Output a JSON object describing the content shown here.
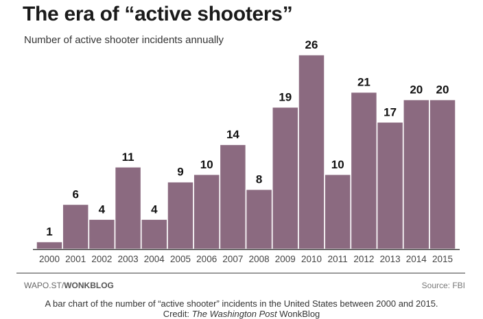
{
  "header": {
    "title": "The era of “active shooters”",
    "subtitle": "Number of active shooter incidents annually"
  },
  "chart_data": {
    "type": "bar",
    "title": "The era of “active shooters”",
    "subtitle": "Number of active shooter incidents annually",
    "xlabel": "",
    "ylabel": "",
    "categories": [
      "2000",
      "2001",
      "2002",
      "2003",
      "2004",
      "2005",
      "2006",
      "2007",
      "2008",
      "2009",
      "2010",
      "2011",
      "2012",
      "2013",
      "2014",
      "2015"
    ],
    "values": [
      1,
      6,
      4,
      11,
      4,
      9,
      10,
      14,
      8,
      19,
      26,
      10,
      21,
      17,
      20,
      20
    ],
    "ylim": [
      0,
      26
    ],
    "grid": false,
    "data_labels": true,
    "bar_color": "#8b6a80"
  },
  "footer": {
    "left_prefix": "WAPO.ST/",
    "left_bold": "WONKBLOG",
    "right": "Source: FBI"
  },
  "caption": {
    "line1": "A bar chart of the number of “active shooter” incidents in the United States between 2000 and 2015.",
    "credit_prefix": "Credit: ",
    "credit_italic": "The Washington Post",
    "credit_suffix": " WonkBlog"
  }
}
